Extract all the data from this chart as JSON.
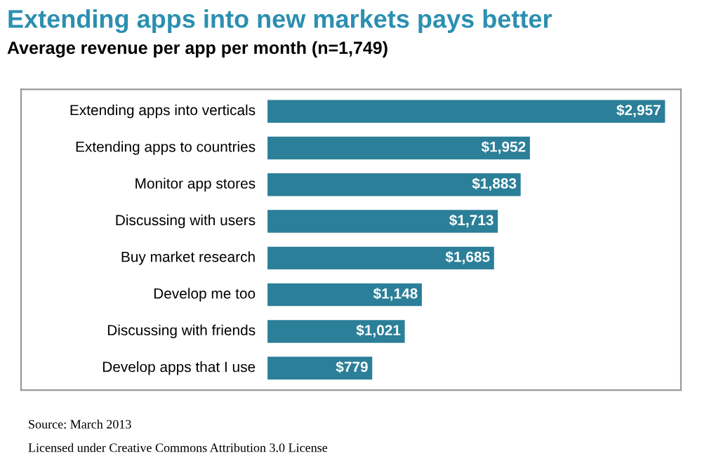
{
  "chart_data": {
    "type": "bar",
    "orientation": "horizontal",
    "title": "Extending apps into new markets pays better",
    "subtitle": "Average revenue per app per month (n=1,749)",
    "categories": [
      "Extending apps into verticals",
      "Extending apps to countries",
      "Monitor app stores",
      "Discussing with users",
      "Buy market research",
      "Develop me too",
      "Discussing with friends",
      "Develop apps that I use"
    ],
    "values": [
      2957,
      1952,
      1883,
      1713,
      1685,
      1148,
      1021,
      779
    ],
    "value_labels": [
      "$2,957",
      "$1,952",
      "$1,883",
      "$1,713",
      "$1,685",
      "$1,148",
      "$1,021",
      "$779"
    ],
    "color": "#2b7f98",
    "annotations": [
      "Source: March 2013",
      "Licensed under Creative Commons Attribution 3.0 License"
    ]
  }
}
